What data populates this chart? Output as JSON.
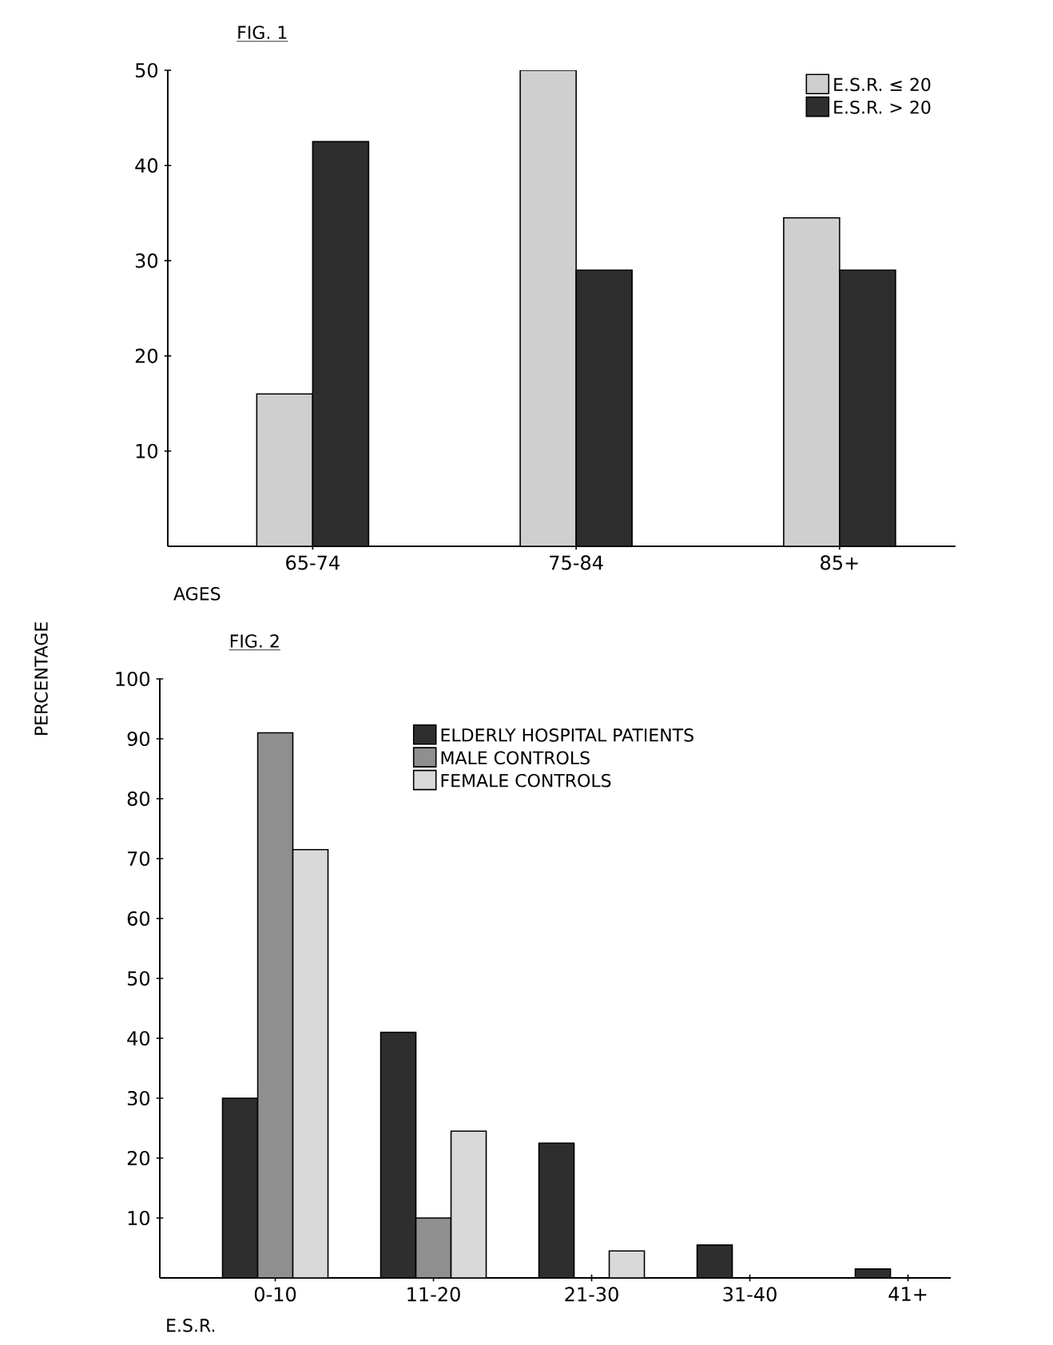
{
  "chart_data": [
    {
      "type": "bar",
      "title": "FIG. 1",
      "xlabel": "AGES",
      "categories": [
        "65-74",
        "75-84",
        "85+"
      ],
      "series": [
        {
          "name": "E.S.R. ≤ 20",
          "color": "#cfcfcf",
          "values": [
            16,
            50,
            34.5
          ]
        },
        {
          "name": "E.S.R. > 20",
          "color": "#2e2e2e",
          "values": [
            42.5,
            29,
            29
          ]
        }
      ],
      "ylim": [
        0,
        50
      ],
      "yticks": [
        10,
        20,
        30,
        40,
        50
      ],
      "legend": "top right"
    },
    {
      "type": "bar",
      "title": "FIG. 2",
      "xlabel": "E.S.R.",
      "ylabel": "PERCENTAGE",
      "categories": [
        "0-10",
        "11-20",
        "21-30",
        "31-40",
        "41+"
      ],
      "series": [
        {
          "name": "ELDERLY HOSPITAL PATIENTS",
          "color": "#2e2e2e",
          "values": [
            30,
            41,
            22.5,
            5.5,
            1.5
          ]
        },
        {
          "name": "MALE CONTROLS",
          "color": "#8f8f8f",
          "values": [
            91,
            10,
            null,
            null,
            null
          ]
        },
        {
          "name": "FEMALE CONTROLS",
          "color": "#d9d9d9",
          "values": [
            71.5,
            24.5,
            4.5,
            null,
            null
          ]
        }
      ],
      "ylim": [
        0,
        100
      ],
      "yticks": [
        10,
        20,
        30,
        40,
        50,
        60,
        70,
        80,
        90,
        100
      ],
      "legend": "top"
    }
  ]
}
